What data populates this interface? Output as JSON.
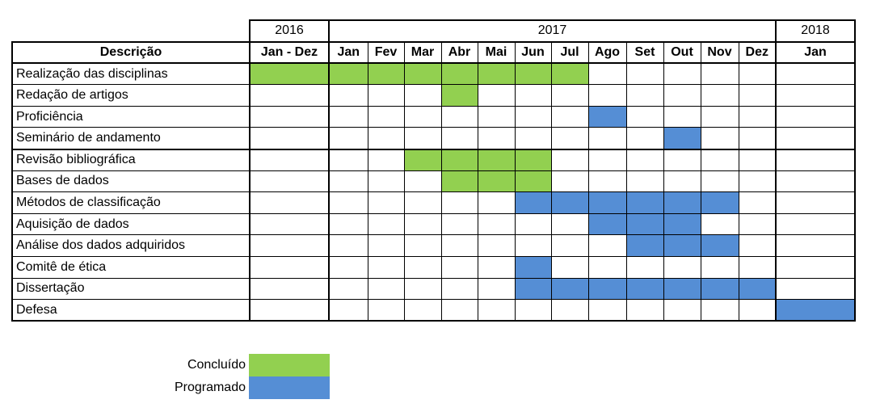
{
  "years": [
    {
      "label": "2016",
      "span": 1
    },
    {
      "label": "2017",
      "span": 12
    },
    {
      "label": "2018",
      "span": 1
    }
  ],
  "header": {
    "description": "Descrição",
    "months": [
      "Jan - Dez",
      "Jan",
      "Fev",
      "Mar",
      "Abr",
      "Mai",
      "Jun",
      "Jul",
      "Ago",
      "Set",
      "Out",
      "Nov",
      "Dez",
      "Jan"
    ]
  },
  "colors": {
    "concluido": "#92d050",
    "programado": "#558ed5"
  },
  "tasks": [
    {
      "name": "Realização das disciplinas",
      "concluido": [
        0,
        1,
        2,
        3,
        4,
        5,
        6,
        7
      ],
      "programado": []
    },
    {
      "name": "Redação de artigos",
      "concluido": [
        4
      ],
      "programado": []
    },
    {
      "name": "Proficiência",
      "concluido": [],
      "programado": [
        8
      ]
    },
    {
      "name": "Seminário de andamento",
      "concluido": [],
      "programado": [
        10
      ]
    },
    {
      "name": "Revisão bibliográfica",
      "concluido": [
        3,
        4,
        5,
        6
      ],
      "programado": []
    },
    {
      "name": "Bases de dados",
      "concluido": [
        4,
        5,
        6
      ],
      "programado": []
    },
    {
      "name": "Métodos de classificação",
      "concluido": [],
      "programado": [
        6,
        7,
        8,
        9,
        10,
        11
      ]
    },
    {
      "name": "Aquisição de dados",
      "concluido": [],
      "programado": [
        8,
        9,
        10
      ]
    },
    {
      "name": "Análise dos dados adquiridos",
      "concluido": [],
      "programado": [
        9,
        10,
        11
      ]
    },
    {
      "name": "Comitê de ética",
      "concluido": [],
      "programado": [
        6
      ]
    },
    {
      "name": "Dissertação",
      "concluido": [],
      "programado": [
        6,
        7,
        8,
        9,
        10,
        11,
        12
      ]
    },
    {
      "name": "Defesa",
      "concluido": [],
      "programado": [
        13
      ]
    }
  ],
  "legend": [
    {
      "label": "Concluído",
      "key": "concluido"
    },
    {
      "label": "Programado",
      "key": "programado"
    }
  ]
}
